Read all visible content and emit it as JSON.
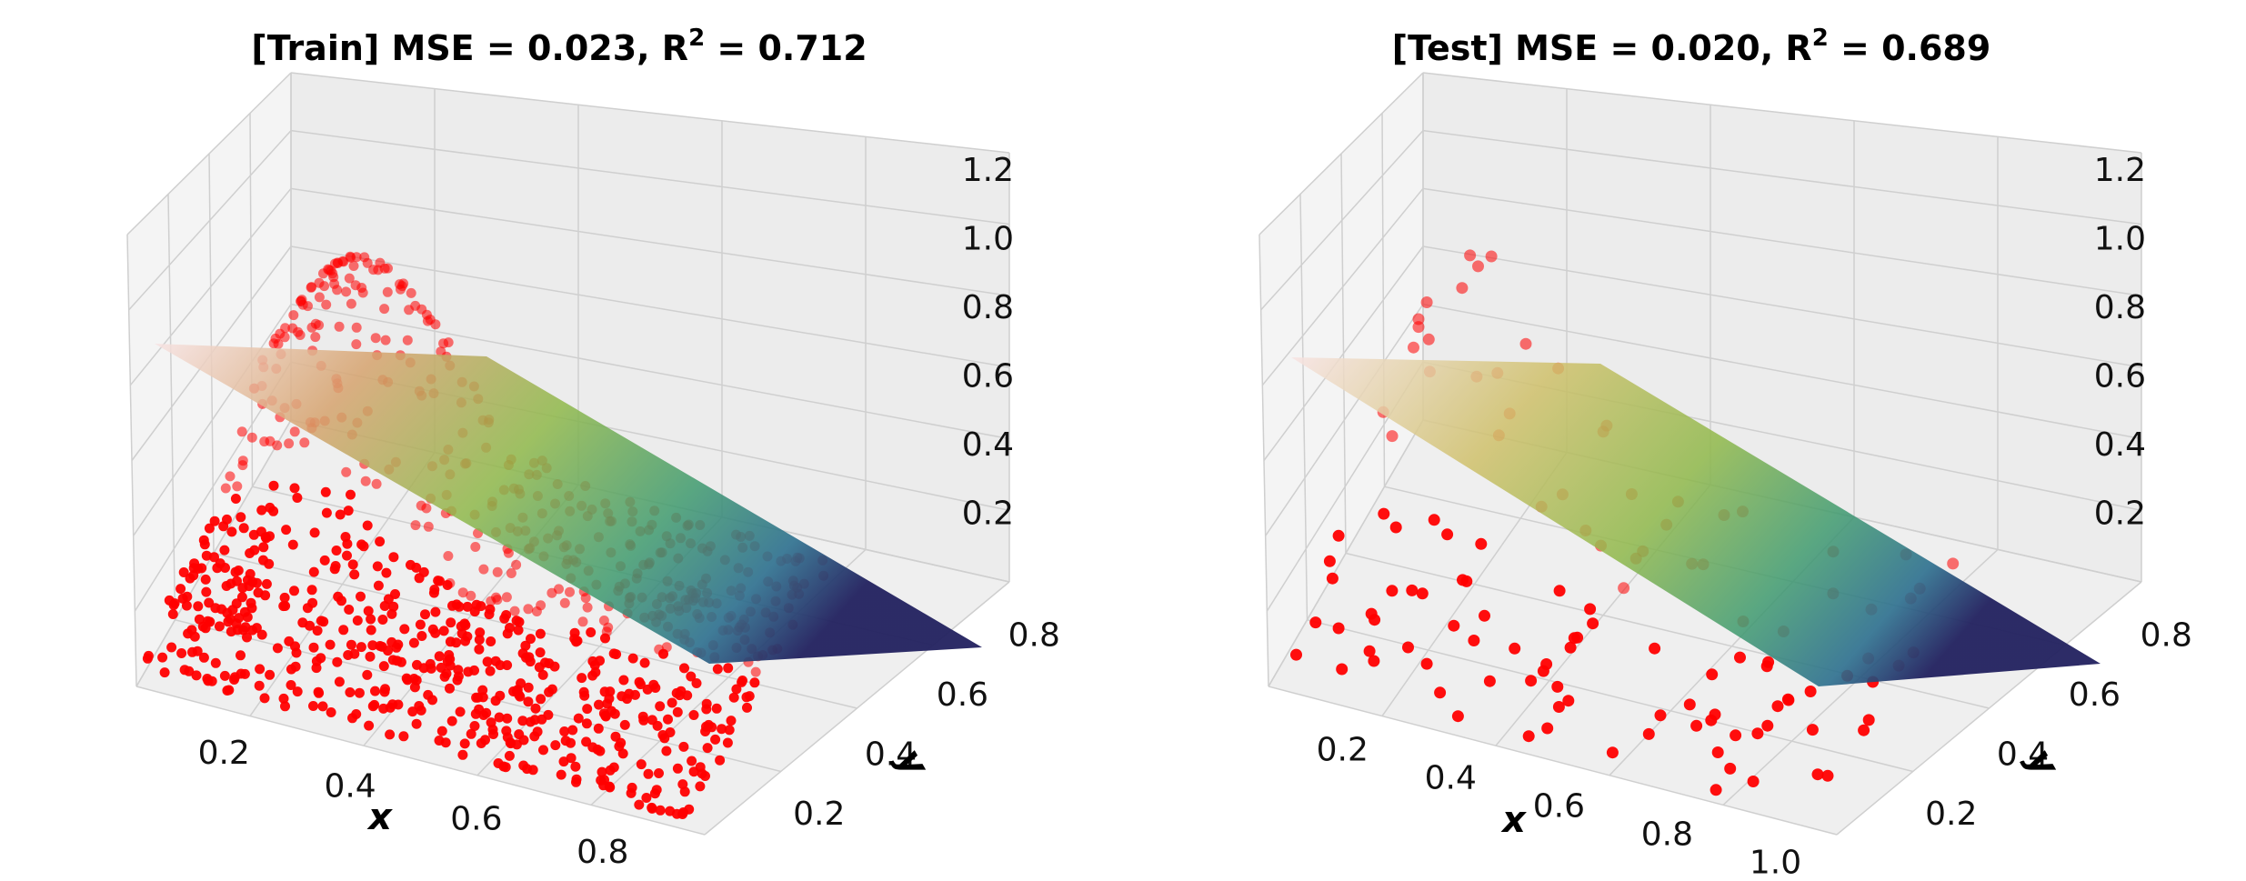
{
  "chart_data": [
    {
      "type": "scatter3d",
      "title_prefix": "[Train]  MSE = 0.023, R",
      "title_sup": "2",
      "title_suffix": " = 0.712",
      "xlabel": "x",
      "ylabel": "y",
      "zlabel": "",
      "x_ticks": [
        "0.2",
        "0.4",
        "0.6",
        "0.8"
      ],
      "y_ticks": [
        "0.2",
        "0.4",
        "0.6",
        "0.8"
      ],
      "z_ticks": [
        "0.2",
        "0.4",
        "0.6",
        "0.8",
        "1.0",
        "1.2"
      ],
      "xlim": [
        0.05,
        0.95
      ],
      "ylim": [
        0.05,
        0.9
      ],
      "zlim": [
        0.0,
        1.25
      ],
      "grid": true,
      "point_color": "#ff0000",
      "surface_colormap": [
        "#f7dede",
        "#d4a373",
        "#8fb84a",
        "#3f9a6e",
        "#2c6f8e",
        "#24246a"
      ],
      "fitted_plane": {
        "intercept": 0.74,
        "coef_x": -0.55,
        "coef_y": 0.0
      },
      "n_points": 900
    },
    {
      "type": "scatter3d",
      "title_prefix": "[Test]  MSE = 0.020, R",
      "title_sup": "2",
      "title_suffix": " = 0.689",
      "xlabel": "x",
      "ylabel": "y",
      "zlabel": "",
      "x_ticks": [
        "0.2",
        "0.4",
        "0.6",
        "0.8",
        "1.0"
      ],
      "y_ticks": [
        "0.2",
        "0.4",
        "0.6",
        "0.8"
      ],
      "z_ticks": [
        "0.2",
        "0.4",
        "0.6",
        "0.8",
        "1.0",
        "1.2"
      ],
      "xlim": [
        0.05,
        1.1
      ],
      "ylim": [
        0.05,
        0.9
      ],
      "zlim": [
        0.0,
        1.25
      ],
      "grid": true,
      "point_color": "#ff0000",
      "surface_colormap": [
        "#f7dede",
        "#d4a373",
        "#8fb84a",
        "#3f9a6e",
        "#2c6f8e",
        "#24246a"
      ],
      "fitted_plane": {
        "intercept": 0.74,
        "coef_x": -0.55,
        "coef_y": 0.0
      },
      "n_points": 120
    }
  ]
}
